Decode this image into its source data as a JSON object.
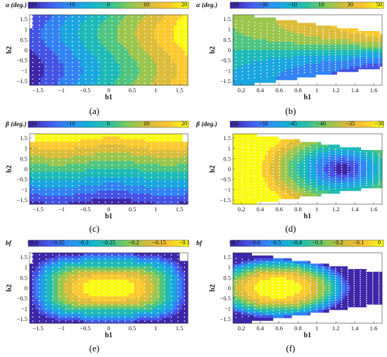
{
  "figure": {
    "panels": [
      {
        "id": "a",
        "caption": "(a)",
        "colorbar": {
          "label": "α (deg.)",
          "ticks": [
            "−20",
            "−10",
            "0",
            "10",
            "20"
          ],
          "range": [
            -25,
            27
          ]
        },
        "xlabel": "b1",
        "ylabel": "b2",
        "xticks": [
          "−1.5",
          "−1",
          "−0.5",
          "0",
          "0.5",
          "1",
          "1.5"
        ],
        "yticks": [
          "1.5",
          "1",
          "0.5",
          "0",
          "−0.5",
          "−1",
          "−1.5"
        ]
      },
      {
        "id": "b",
        "caption": "(b)",
        "colorbar": {
          "label": "α (deg.)",
          "ticks": [
            "−50",
            "−30",
            "−10",
            "10",
            "30",
            "50"
          ],
          "range": [
            -55,
            55
          ]
        },
        "xlabel": "b1",
        "ylabel": "b2",
        "xticks": [
          "0.2",
          "0.4",
          "0.6",
          "0.8",
          "1",
          "1.2",
          "1.4",
          "1.6"
        ],
        "yticks": [
          "1.5",
          "1",
          "0.5",
          "0",
          "−0.5",
          "−1",
          "−1.5"
        ]
      },
      {
        "id": "c",
        "caption": "(c)",
        "colorbar": {
          "label": "β (deg.)",
          "ticks": [
            "−20",
            "−10",
            "0",
            "10",
            "20"
          ],
          "range": [
            -25,
            27
          ]
        },
        "xlabel": "b1",
        "ylabel": "b2",
        "xticks": [
          "−1.5",
          "−1",
          "−0.5",
          "0",
          "0.5",
          "1",
          "1.5"
        ],
        "yticks": [
          "1.5",
          "1",
          "0.5",
          "0",
          "−0.5",
          "−1",
          "−1.5"
        ]
      },
      {
        "id": "d",
        "caption": "(d)",
        "colorbar": {
          "label": "β (deg.)",
          "ticks": [
            "−55",
            "−50",
            "−45",
            "−40",
            "−35",
            "−30"
          ],
          "range": [
            -58,
            -28
          ]
        },
        "xlabel": "b1",
        "ylabel": "b2",
        "xticks": [
          "0.2",
          "0.4",
          "0.6",
          "0.8",
          "1",
          "1.2",
          "1.4",
          "1.6"
        ],
        "yticks": [
          "1.5",
          "1",
          "0.5",
          "0",
          "−0.5",
          "−1",
          "−1.5"
        ]
      },
      {
        "id": "e",
        "caption": "(e)",
        "colorbar": {
          "label": "bf",
          "ticks": [
            "−0.4",
            "−0.35",
            "−0.3",
            "−0.25",
            "−0.2",
            "−0.15",
            "−0.1"
          ],
          "range": [
            -0.42,
            -0.06
          ]
        },
        "xlabel": "b1",
        "ylabel": "b2",
        "xticks": [
          "−1.5",
          "−1",
          "−0.5",
          "0",
          "0.5",
          "1",
          "1.5"
        ],
        "yticks": [
          "1.5",
          "1",
          "0.5",
          "0",
          "−0.5",
          "−1",
          "−1.5"
        ]
      },
      {
        "id": "f",
        "caption": "(f)",
        "colorbar": {
          "label": "bf",
          "ticks": [
            "−0.7",
            "−0.6",
            "−0.5",
            "−0.4",
            "−0.3",
            "−0.2",
            "−0.1",
            "0"
          ],
          "range": [
            -0.78,
            0
          ]
        },
        "xlabel": "b1",
        "ylabel": "b2",
        "xticks": [
          "0.2",
          "0.4",
          "0.6",
          "0.8",
          "1",
          "1.2",
          "1.4",
          "1.6"
        ],
        "yticks": [
          "1.5",
          "1",
          "0.5",
          "0",
          "−0.5",
          "−1",
          "−1.5"
        ]
      }
    ],
    "colormap": [
      "#3e26a8",
      "#4659ee",
      "#2c8ff7",
      "#12b1d6",
      "#28c1a0",
      "#80cb57",
      "#d2bb3d",
      "#fcc332",
      "#f9fb14"
    ]
  }
}
